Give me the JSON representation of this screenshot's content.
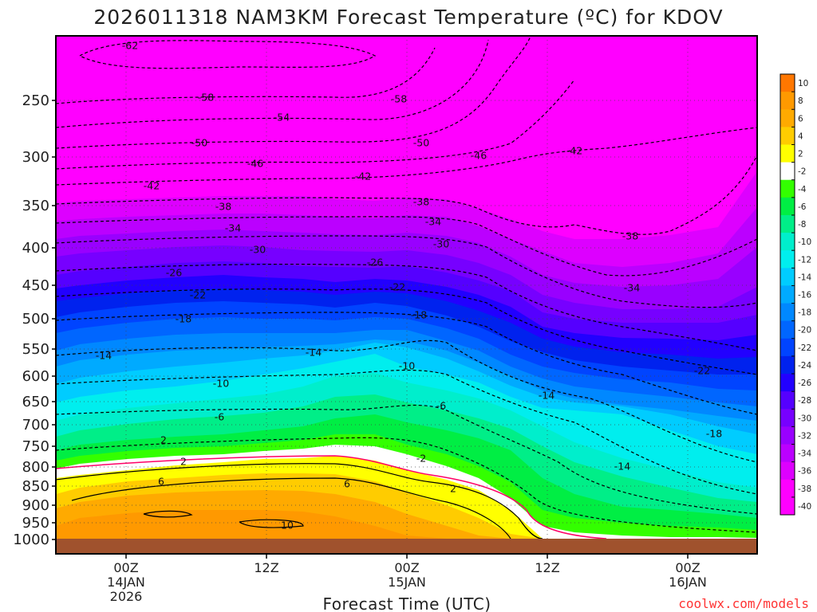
{
  "chart_data": {
    "type": "heatmap",
    "title": "2026011318 NAM3KM Forecast Temperature (ºC) for KDOV",
    "xlabel": "Forecast Time (UTC)",
    "ylabel": "",
    "credit": "coolwx.com/models",
    "y_ticks": [
      "250",
      "300",
      "350",
      "400",
      "450",
      "500",
      "550",
      "600",
      "650",
      "700",
      "750",
      "800",
      "850",
      "900",
      "950",
      "1000"
    ],
    "x_ticks": [
      {
        "lines": [
          "00Z",
          "14JAN",
          "2026"
        ]
      },
      {
        "lines": [
          "12Z"
        ]
      },
      {
        "lines": [
          "00Z",
          "15JAN"
        ]
      },
      {
        "lines": [
          "12Z"
        ]
      },
      {
        "lines": [
          "00Z",
          "16JAN"
        ]
      }
    ],
    "colorbar": {
      "labels": [
        "10",
        "8",
        "6",
        "4",
        "2",
        "-2",
        "-4",
        "-6",
        "-8",
        "-10",
        "-12",
        "-14",
        "-16",
        "-18",
        "-20",
        "-22",
        "-24",
        "-26",
        "-28",
        "-30",
        "-32",
        "-34",
        "-36",
        "-38",
        "-40"
      ],
      "colors": [
        "#ff7700",
        "#ff9900",
        "#ffaa00",
        "#ffcc00",
        "#ffff00",
        "#ffffff",
        "#33ff00",
        "#00ee44",
        "#00ee88",
        "#00eecc",
        "#00eeee",
        "#00ccff",
        "#00aaff",
        "#0088ff",
        "#0066ff",
        "#0044ff",
        "#0022ee",
        "#2200ff",
        "#5500ff",
        "#7700ff",
        "#9900ff",
        "#bb00ff",
        "#dd00ff",
        "#ff00ff",
        "#ff00ff"
      ]
    },
    "contour_labels": [
      "-62",
      "-58",
      "-58",
      "-54",
      "-50",
      "-50",
      "-46",
      "-46",
      "-42",
      "-42",
      "-42",
      "-38",
      "-38",
      "-38",
      "-34",
      "-34",
      "-34",
      "-30",
      "-30",
      "-26",
      "-26",
      "-22",
      "-22",
      "-22",
      "-18",
      "-18",
      "-18",
      "-14",
      "-14",
      "-14",
      "-14",
      "-10",
      "-10",
      "-6",
      "-6",
      "2",
      "2",
      "-2",
      "2",
      "6",
      "6",
      "10"
    ],
    "isotherms": [
      {
        "label": "-62",
        "color": "#000000",
        "style": "dashed"
      },
      {
        "label": "-58",
        "color": "#000000",
        "style": "dashed"
      },
      {
        "label": "-54",
        "color": "#000000",
        "style": "dashed"
      },
      {
        "label": "-50",
        "color": "#000000",
        "style": "dashed"
      },
      {
        "label": "-46",
        "color": "#000000",
        "style": "dashed"
      },
      {
        "label": "-42",
        "color": "#000000",
        "style": "dashed"
      },
      {
        "label": "-38",
        "color": "#000000",
        "style": "dashed"
      },
      {
        "label": "-34",
        "color": "#000000",
        "style": "dashed"
      },
      {
        "label": "-30",
        "color": "#000000",
        "style": "dashed"
      },
      {
        "label": "-26",
        "color": "#000000",
        "style": "dashed"
      },
      {
        "label": "-22",
        "color": "#000000",
        "style": "dashed"
      },
      {
        "label": "-18",
        "color": "#000000",
        "style": "dashed"
      },
      {
        "label": "-14",
        "color": "#000000",
        "style": "dashed"
      },
      {
        "label": "-10",
        "color": "#000000",
        "style": "dashed"
      },
      {
        "label": "-6",
        "color": "#000000",
        "style": "dashed"
      },
      {
        "label": "-2",
        "color": "#000000",
        "style": "dashed"
      },
      {
        "label": "0",
        "color": "#ff0066",
        "style": "solid"
      },
      {
        "label": "2",
        "color": "#000000",
        "style": "solid"
      },
      {
        "label": "6",
        "color": "#000000",
        "style": "solid"
      },
      {
        "label": "10",
        "color": "#000000",
        "style": "solid"
      }
    ],
    "ground_color": "#a0522d",
    "grid": "dotted"
  }
}
